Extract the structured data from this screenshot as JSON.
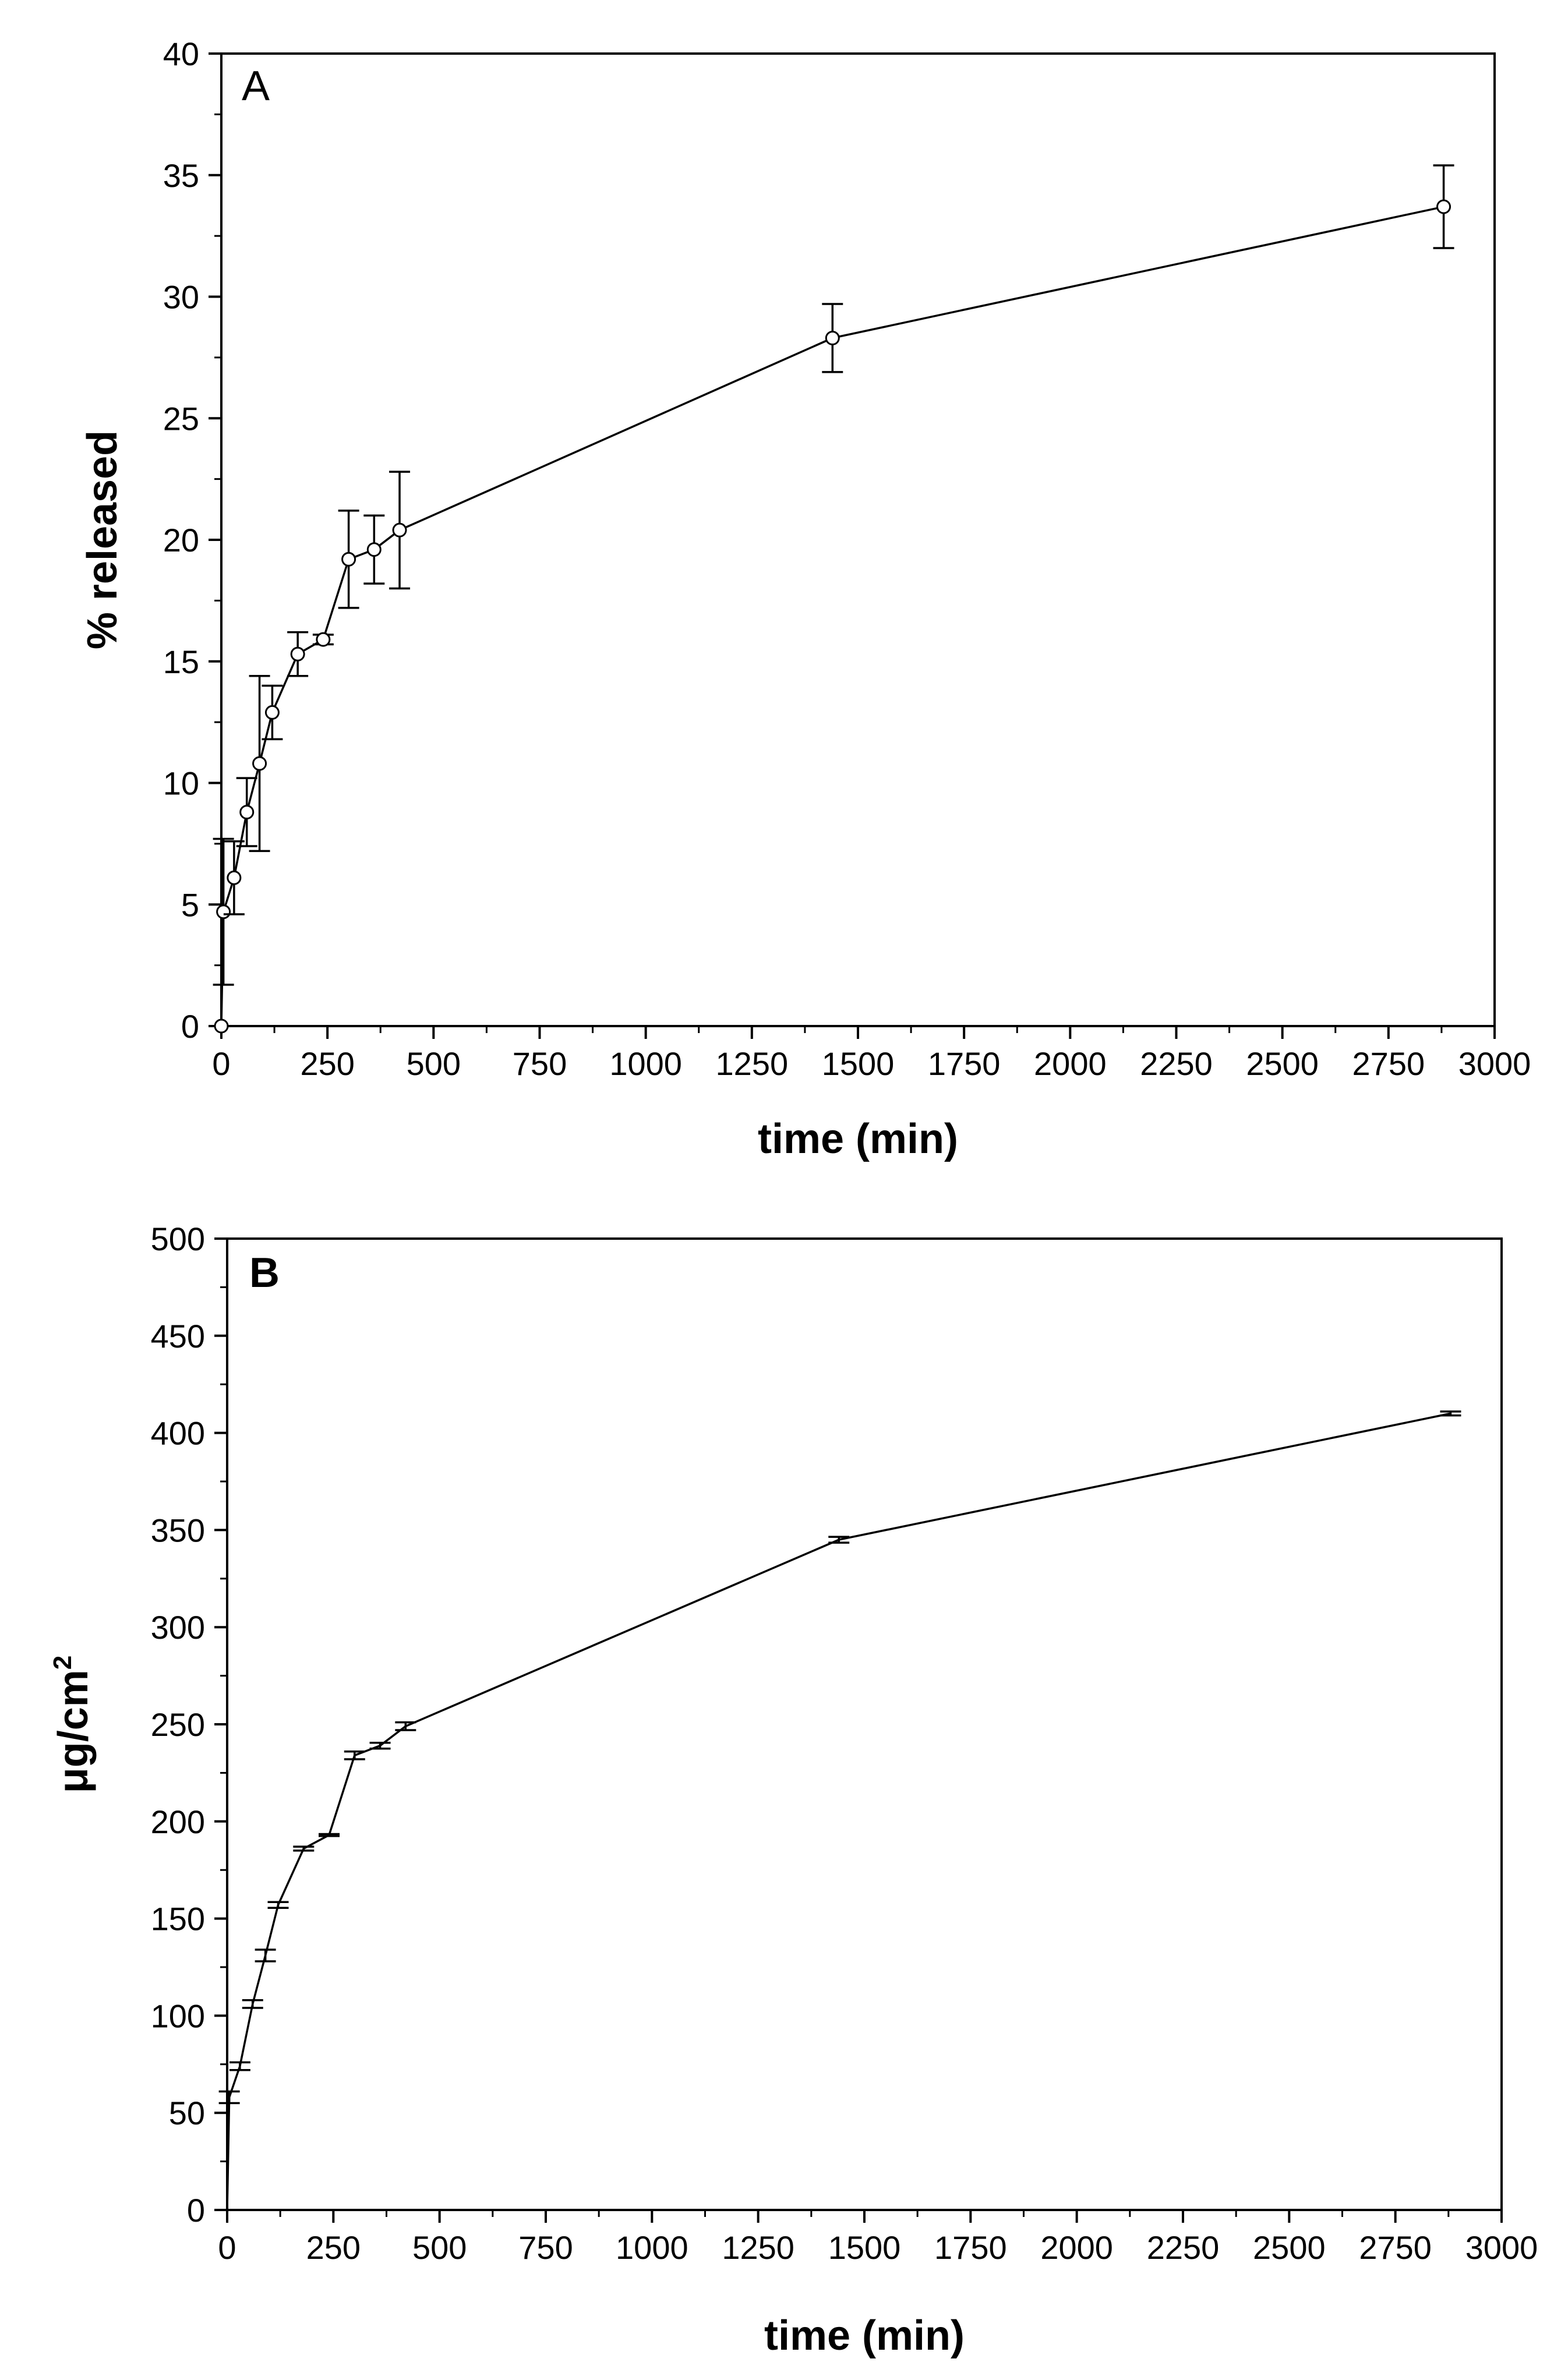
{
  "chart_data": [
    {
      "type": "line",
      "panel_label": "A",
      "panel_label_bold": false,
      "xlabel": "time (min)",
      "ylabel": "% released",
      "xlim": [
        0,
        3000
      ],
      "ylim": [
        0,
        40
      ],
      "xticks": [
        0,
        250,
        500,
        750,
        1000,
        1250,
        1500,
        1750,
        2000,
        2250,
        2500,
        2750,
        3000
      ],
      "yticks": [
        0,
        5,
        10,
        15,
        20,
        25,
        30,
        35,
        40
      ],
      "marker": "open-circle",
      "series": [
        {
          "name": "% released",
          "x": [
            0,
            5,
            30,
            60,
            90,
            120,
            180,
            240,
            300,
            360,
            420,
            1440,
            2880
          ],
          "y": [
            0,
            4.7,
            6.1,
            8.8,
            10.8,
            12.9,
            15.3,
            15.9,
            19.2,
            19.6,
            20.4,
            28.3,
            33.7
          ],
          "error": [
            0,
            3.0,
            1.5,
            1.4,
            3.6,
            1.1,
            0.9,
            0.2,
            2.0,
            1.4,
            2.4,
            1.4,
            1.7
          ]
        }
      ]
    },
    {
      "type": "line",
      "panel_label": "B",
      "panel_label_bold": true,
      "xlabel": "time (min)",
      "ylabel": "μg/cm",
      "ylabel_superscript": "2",
      "xlim": [
        0,
        3000
      ],
      "ylim": [
        0,
        500
      ],
      "xticks": [
        0,
        250,
        500,
        750,
        1000,
        1250,
        1500,
        1750,
        2000,
        2250,
        2500,
        2750,
        3000
      ],
      "yticks": [
        0,
        50,
        100,
        150,
        200,
        250,
        300,
        350,
        400,
        450,
        500
      ],
      "marker": "none",
      "series": [
        {
          "name": "μg/cm2",
          "x": [
            0,
            5,
            30,
            60,
            90,
            120,
            180,
            240,
            300,
            360,
            420,
            1440,
            2880
          ],
          "y": [
            0,
            58,
            74,
            106,
            131,
            157,
            186,
            193,
            234,
            239,
            249,
            345,
            410
          ],
          "error": [
            0,
            3,
            2,
            2,
            3,
            1.5,
            1,
            0.5,
            2,
            1.5,
            2,
            1.5,
            1
          ]
        }
      ]
    }
  ]
}
